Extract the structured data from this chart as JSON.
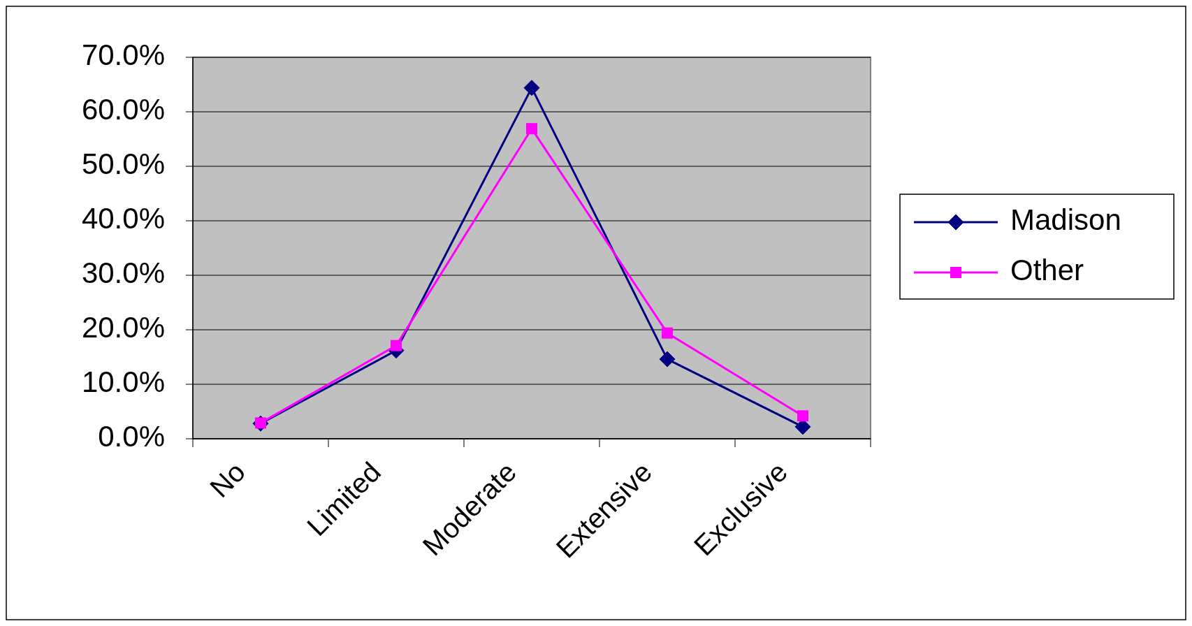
{
  "chart_data": {
    "type": "line",
    "categories": [
      "No",
      "Limited",
      "Moderate",
      "Extensive",
      "Exclusive"
    ],
    "series": [
      {
        "name": "Madison",
        "color": "#000080",
        "marker": "diamond",
        "values": [
          2.8,
          16.2,
          64.4,
          14.6,
          2.2
        ]
      },
      {
        "name": "Other",
        "color": "#ff00ff",
        "marker": "square",
        "values": [
          2.9,
          17.1,
          56.9,
          19.4,
          4.2
        ]
      }
    ],
    "ylim": [
      0,
      70
    ],
    "yticks": [
      {
        "value": 0,
        "label": "0.0%"
      },
      {
        "value": 10,
        "label": "10.0%"
      },
      {
        "value": 20,
        "label": "20.0%"
      },
      {
        "value": 30,
        "label": "30.0%"
      },
      {
        "value": 40,
        "label": "40.0%"
      },
      {
        "value": 50,
        "label": "50.0%"
      },
      {
        "value": 60,
        "label": "60.0%"
      },
      {
        "value": 70,
        "label": "70.0%"
      }
    ],
    "grid": "y",
    "legend": "right",
    "line_style": "solid"
  }
}
